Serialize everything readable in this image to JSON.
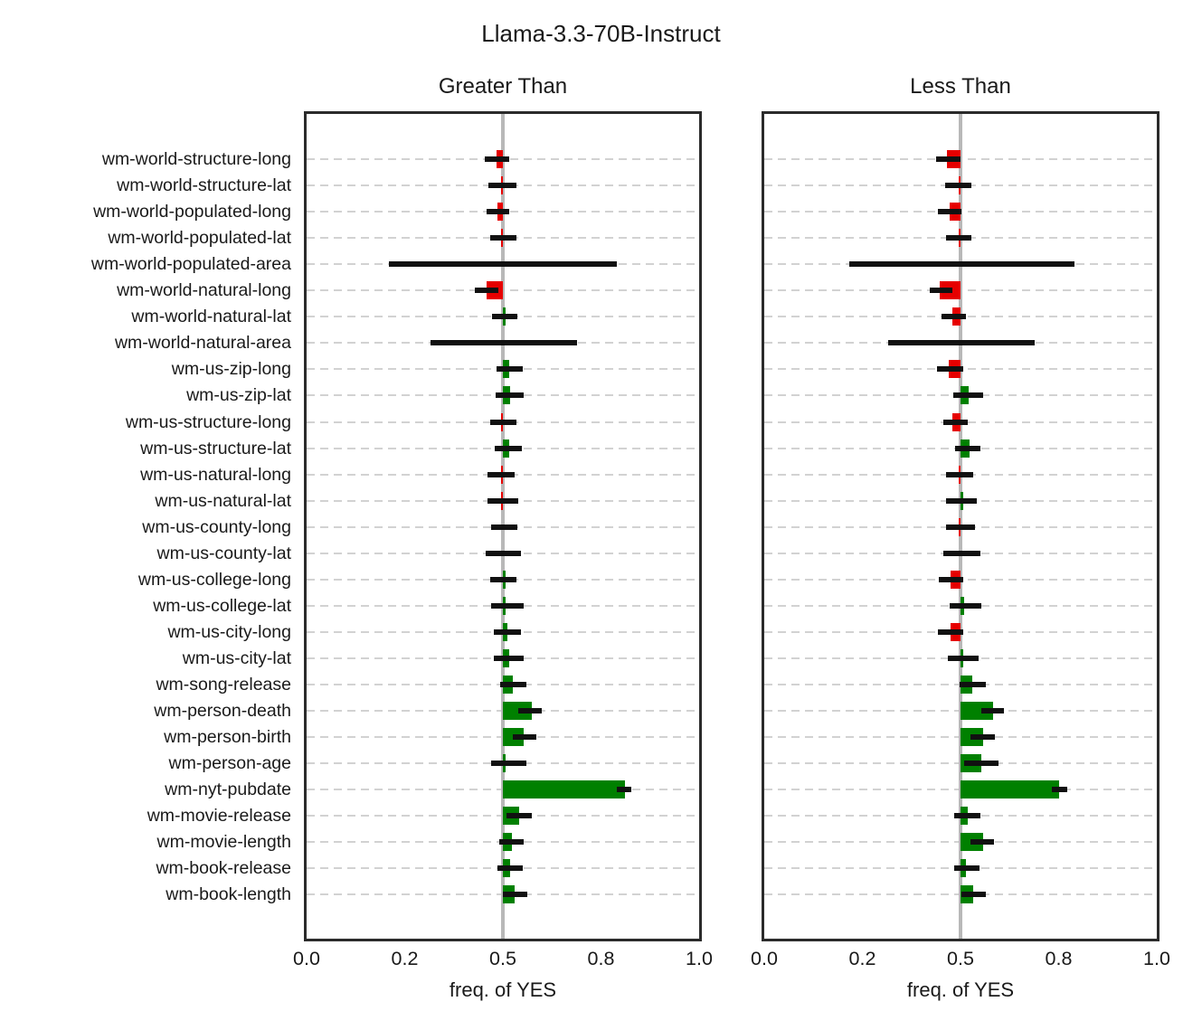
{
  "title": "Llama-3.3-70B-Instruct",
  "chart_data": {
    "type": "bar",
    "orientation": "horizontal",
    "baseline": 0.5,
    "xlabel": "freq. of YES",
    "xlim": [
      0,
      1
    ],
    "grid": "dashed-horizontal",
    "error_bars": true,
    "xticks": [
      {
        "pos": 0.0,
        "label": "0.0"
      },
      {
        "pos": 0.25,
        "label": "0.2"
      },
      {
        "pos": 0.5,
        "label": "0.5"
      },
      {
        "pos": 0.75,
        "label": "0.8"
      },
      {
        "pos": 1.0,
        "label": "1.0"
      }
    ],
    "categories": [
      "wm-world-structure-long",
      "wm-world-structure-lat",
      "wm-world-populated-long",
      "wm-world-populated-lat",
      "wm-world-populated-area",
      "wm-world-natural-long",
      "wm-world-natural-lat",
      "wm-world-natural-area",
      "wm-us-zip-long",
      "wm-us-zip-lat",
      "wm-us-structure-long",
      "wm-us-structure-lat",
      "wm-us-natural-long",
      "wm-us-natural-lat",
      "wm-us-county-long",
      "wm-us-county-lat",
      "wm-us-college-long",
      "wm-us-college-lat",
      "wm-us-city-long",
      "wm-us-city-lat",
      "wm-song-release",
      "wm-person-death",
      "wm-person-birth",
      "wm-person-age",
      "wm-nyt-pubdate",
      "wm-movie-release",
      "wm-movie-length",
      "wm-book-release",
      "wm-book-length"
    ],
    "panels": [
      {
        "title": "Greater Than",
        "values": [
          0.485,
          0.498,
          0.486,
          0.498,
          0.5,
          0.459,
          0.503,
          0.5,
          0.517,
          0.518,
          0.499,
          0.515,
          0.497,
          0.499,
          0.5,
          0.5,
          0.502,
          0.507,
          0.511,
          0.515,
          0.525,
          0.574,
          0.553,
          0.503,
          0.81,
          0.541,
          0.523,
          0.519,
          0.53
        ],
        "err_lo": [
          0.455,
          0.462,
          0.459,
          0.468,
          0.21,
          0.428,
          0.472,
          0.315,
          0.483,
          0.481,
          0.467,
          0.479,
          0.461,
          0.461,
          0.469,
          0.457,
          0.468,
          0.47,
          0.478,
          0.476,
          0.494,
          0.54,
          0.525,
          0.469,
          0.79,
          0.51,
          0.491,
          0.487,
          0.5
        ],
        "err_hi": [
          0.515,
          0.535,
          0.515,
          0.535,
          0.79,
          0.488,
          0.538,
          0.69,
          0.55,
          0.552,
          0.535,
          0.549,
          0.531,
          0.54,
          0.537,
          0.547,
          0.535,
          0.553,
          0.545,
          0.553,
          0.559,
          0.6,
          0.585,
          0.559,
          0.827,
          0.574,
          0.553,
          0.55,
          0.562
        ]
      },
      {
        "title": "Less Than",
        "values": [
          0.466,
          0.497,
          0.472,
          0.498,
          0.5,
          0.447,
          0.48,
          0.5,
          0.471,
          0.521,
          0.48,
          0.523,
          0.497,
          0.501,
          0.499,
          0.5,
          0.474,
          0.51,
          0.474,
          0.503,
          0.53,
          0.584,
          0.558,
          0.553,
          0.75,
          0.519,
          0.558,
          0.514,
          0.532
        ],
        "err_lo": [
          0.438,
          0.46,
          0.442,
          0.462,
          0.216,
          0.422,
          0.452,
          0.316,
          0.44,
          0.482,
          0.456,
          0.487,
          0.462,
          0.463,
          0.464,
          0.457,
          0.444,
          0.473,
          0.443,
          0.468,
          0.498,
          0.554,
          0.526,
          0.509,
          0.732,
          0.485,
          0.525,
          0.483,
          0.502
        ],
        "err_hi": [
          0.5,
          0.528,
          0.502,
          0.528,
          0.79,
          0.48,
          0.515,
          0.69,
          0.506,
          0.557,
          0.519,
          0.551,
          0.532,
          0.542,
          0.536,
          0.55,
          0.507,
          0.553,
          0.506,
          0.545,
          0.564,
          0.611,
          0.588,
          0.596,
          0.771,
          0.55,
          0.586,
          0.548,
          0.564
        ]
      }
    ],
    "colors": {
      "above_baseline": "#008000",
      "below_baseline": "#e60000",
      "baseline_line": "#b8b8b8",
      "grid_line": "#d2d2d2",
      "error_bar": "#111111"
    }
  }
}
